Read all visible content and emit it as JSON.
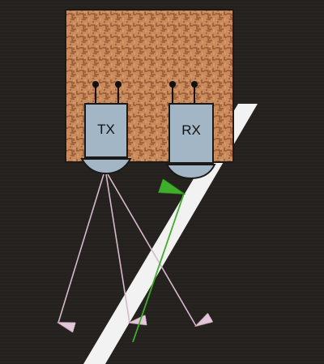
{
  "diagram": {
    "transmitter_label": "TX",
    "receiver_label": "RX",
    "colors": {
      "background": "#221f1c",
      "board": "#c98a5c",
      "board_pattern": "#8a4f2a",
      "sensor_body": "#a3b6c6",
      "sensor_outline": "#1a1a1a",
      "surface_stripe": "#f2f2f2",
      "emitted_ray": "#d6b9cd",
      "reflected_ray": "#3fae2a"
    },
    "rays": {
      "emitted_count": 3,
      "reflected_count": 1
    }
  }
}
